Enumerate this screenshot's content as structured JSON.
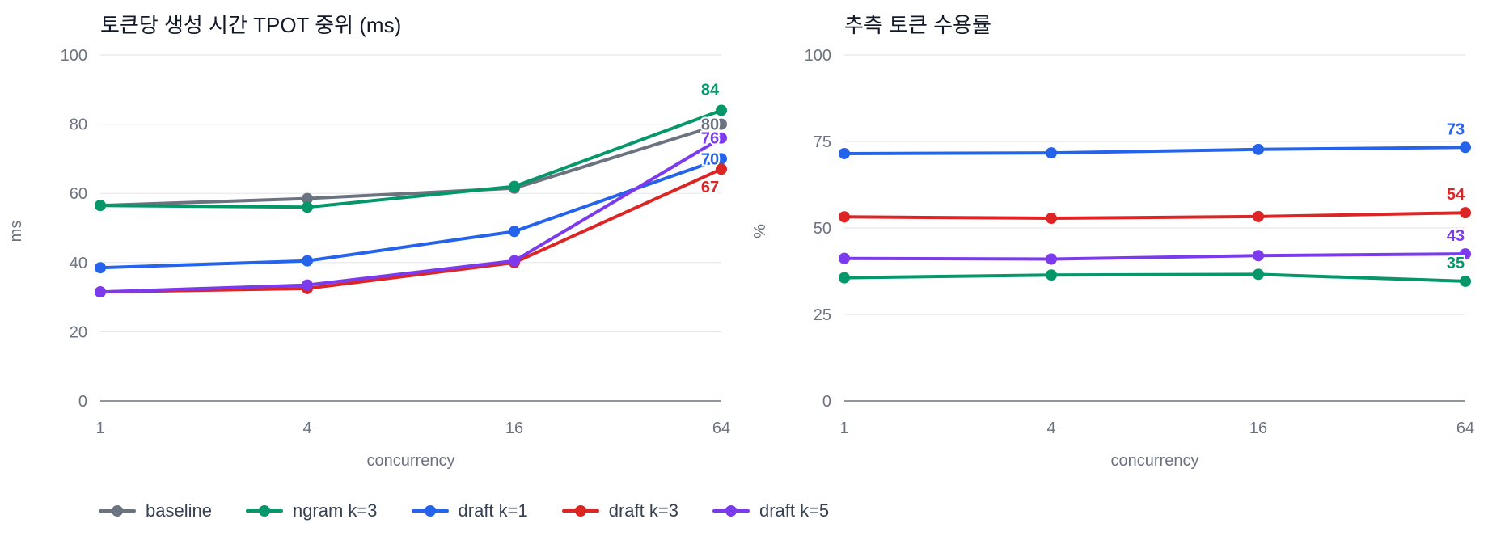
{
  "legend": [
    {
      "name": "baseline",
      "color": "#6b7280"
    },
    {
      "name": "ngram k=3",
      "color": "#059669"
    },
    {
      "name": "draft k=1",
      "color": "#2563eb"
    },
    {
      "name": "draft k=3",
      "color": "#dc2626"
    },
    {
      "name": "draft k=5",
      "color": "#7c3aed"
    }
  ],
  "chart_data": [
    {
      "type": "line",
      "title": "토큰당 생성 시간 TPOT 중위 (ms)",
      "xlabel": "concurrency",
      "ylabel": "ms",
      "x_scale": "log2",
      "categories": [
        "1",
        "4",
        "16",
        "64"
      ],
      "x": [
        1,
        4,
        16,
        64
      ],
      "ylim": [
        0,
        100
      ],
      "yticks": [
        0,
        20,
        40,
        60,
        80,
        100
      ],
      "grid": true,
      "series": [
        {
          "name": "baseline",
          "color": "#6b7280",
          "values": [
            56.5,
            58.5,
            61.5,
            80
          ],
          "end_label": "80"
        },
        {
          "name": "ngram k=3",
          "color": "#059669",
          "values": [
            56.5,
            56,
            62,
            84
          ],
          "end_label": "84"
        },
        {
          "name": "draft k=1",
          "color": "#2563eb",
          "values": [
            38.5,
            40.5,
            49,
            70
          ],
          "end_label": "70"
        },
        {
          "name": "draft k=3",
          "color": "#dc2626",
          "values": [
            31.5,
            32.5,
            40,
            67
          ],
          "end_label": "67"
        },
        {
          "name": "draft k=5",
          "color": "#7c3aed",
          "values": [
            31.5,
            33.5,
            40.5,
            76
          ],
          "end_label": "76"
        }
      ]
    },
    {
      "type": "line",
      "title": "추측 토큰 수용률",
      "xlabel": "concurrency",
      "ylabel": "%",
      "x_scale": "log2",
      "categories": [
        "1",
        "4",
        "16",
        "64"
      ],
      "x": [
        1,
        4,
        16,
        64
      ],
      "ylim": [
        0,
        100
      ],
      "yticks": [
        0,
        25,
        50,
        75,
        100
      ],
      "grid": true,
      "series": [
        {
          "name": "draft k=1",
          "color": "#2563eb",
          "values": [
            71.5,
            71.7,
            72.7,
            73.3
          ],
          "end_label": "73"
        },
        {
          "name": "draft k=3",
          "color": "#dc2626",
          "values": [
            53.2,
            52.8,
            53.3,
            54.4
          ],
          "end_label": "54"
        },
        {
          "name": "draft k=5",
          "color": "#7c3aed",
          "values": [
            41.2,
            41.0,
            42.0,
            42.5
          ],
          "end_label": "43"
        },
        {
          "name": "ngram k=3",
          "color": "#059669",
          "values": [
            35.6,
            36.4,
            36.6,
            34.6
          ],
          "end_label": "35"
        }
      ]
    }
  ]
}
